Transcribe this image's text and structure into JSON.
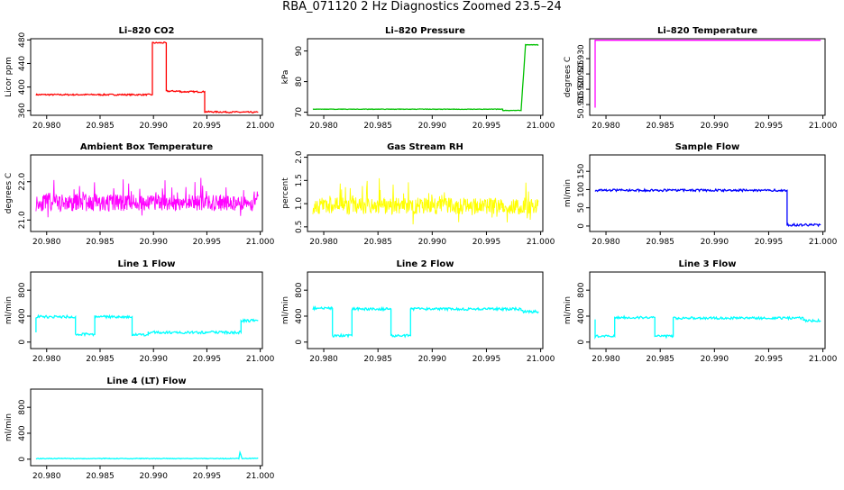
{
  "title": "RBA_071120  2 Hz Diagnostics Zoomed 23.5–24",
  "colors": {
    "red": "#ff0000",
    "green": "#00c000",
    "magenta": "#ff00ff",
    "yellow": "#ffff00",
    "blue": "#0000ff",
    "cyan": "#00ffff"
  },
  "chart_data": [
    {
      "type": "line",
      "title": "Li–820 CO2",
      "ylabel": "Licor ppm",
      "xlim": [
        20.9785,
        21.0002
      ],
      "ylim": [
        352,
        482
      ],
      "xticks": [
        20.98,
        20.985,
        20.99,
        20.995,
        21.0
      ],
      "xtick_labels": [
        "20.980",
        "20.985",
        "20.990",
        "20.995",
        "21.000"
      ],
      "yticks": [
        360,
        400,
        440,
        480
      ],
      "ytick_labels": [
        "360",
        "400",
        "440",
        "480"
      ],
      "color": "red",
      "noise": 1.2,
      "series": [
        {
          "x": [
            20.979,
            20.9899,
            20.9899,
            20.9912,
            20.9912,
            20.9925,
            20.9925,
            20.9948,
            20.9948,
            20.9998
          ],
          "y": [
            387,
            387,
            475,
            475,
            393,
            393,
            392,
            392,
            358,
            357
          ]
        }
      ]
    },
    {
      "type": "line",
      "title": "Li–820 Pressure",
      "ylabel": "kPa",
      "xlim": [
        20.9785,
        21.0002
      ],
      "ylim": [
        69,
        94
      ],
      "xticks": [
        20.98,
        20.985,
        20.99,
        20.995,
        21.0
      ],
      "xtick_labels": [
        "20.980",
        "20.985",
        "20.990",
        "20.995",
        "21.000"
      ],
      "yticks": [
        70,
        80,
        90
      ],
      "ytick_labels": [
        "70",
        "80",
        "90"
      ],
      "color": "green",
      "noise": 0.08,
      "series": [
        {
          "x": [
            20.979,
            20.9965,
            20.9965,
            20.9982,
            20.9986,
            20.9998
          ],
          "y": [
            71.0,
            71.0,
            70.6,
            70.6,
            92.0,
            92.0
          ]
        }
      ]
    },
    {
      "type": "line",
      "title": "Li–820 Temperature",
      "ylabel": "degrees C",
      "xlim": [
        20.9785,
        21.0002
      ],
      "ylim": [
        50.9115,
        50.9365
      ],
      "xticks": [
        20.98,
        20.985,
        20.99,
        20.995,
        21.0
      ],
      "xtick_labels": [
        "20.980",
        "20.985",
        "20.990",
        "20.995",
        "21.000"
      ],
      "yticks": [
        50.915,
        50.92,
        50.925,
        50.93
      ],
      "ytick_labels": [
        "50.915",
        "50.920",
        "50.925",
        "50.930"
      ],
      "color": "magenta",
      "noise": 0,
      "series": [
        {
          "x": [
            20.979,
            20.979,
            20.9791,
            20.9998
          ],
          "y": [
            50.914,
            50.936,
            50.936,
            50.936
          ]
        }
      ]
    },
    {
      "type": "line",
      "title": "Ambient Box Temperature",
      "ylabel": "degrees C",
      "xlim": [
        20.9785,
        21.0002
      ],
      "ylim": [
        20.7,
        22.7
      ],
      "xticks": [
        20.98,
        20.985,
        20.99,
        20.995,
        21.0
      ],
      "xtick_labels": [
        "20.980",
        "20.985",
        "20.990",
        "20.995",
        "21.000"
      ],
      "yticks": [
        21.0,
        22.0
      ],
      "ytick_labels": [
        "21.0",
        "22.0"
      ],
      "color": "magenta",
      "noise_band": {
        "center": 21.45,
        "spread": 0.22,
        "spike": 0.85,
        "seed": 11
      },
      "series": [
        {
          "x": [
            20.979,
            20.9998
          ],
          "y": [
            21.45,
            21.45
          ]
        }
      ]
    },
    {
      "type": "line",
      "title": "Gas Stream RH",
      "ylabel": "percent",
      "xlim": [
        20.9785,
        21.0002
      ],
      "ylim": [
        0.4,
        2.05
      ],
      "xticks": [
        20.98,
        20.985,
        20.99,
        20.995,
        21.0
      ],
      "xtick_labels": [
        "20.980",
        "20.985",
        "20.990",
        "20.995",
        "21.000"
      ],
      "yticks": [
        0.5,
        1.0,
        1.5,
        2.0
      ],
      "ytick_labels": [
        "0.5",
        "1.0",
        "1.5",
        "2.0"
      ],
      "color": "yellow",
      "noise_band": {
        "center": 0.95,
        "spread": 0.18,
        "spike": 0.85,
        "seed": 23
      },
      "series": [
        {
          "x": [
            20.979,
            20.9998
          ],
          "y": [
            0.95,
            0.95
          ]
        }
      ]
    },
    {
      "type": "line",
      "title": "Sample Flow",
      "ylabel": "ml/min",
      "xlim": [
        20.9785,
        21.0002
      ],
      "ylim": [
        -15,
        195
      ],
      "xticks": [
        20.98,
        20.985,
        20.99,
        20.995,
        21.0
      ],
      "xtick_labels": [
        "20.980",
        "20.985",
        "20.990",
        "20.995",
        "21.000"
      ],
      "yticks": [
        0,
        50,
        100,
        150
      ],
      "ytick_labels": [
        "0",
        "50",
        "100",
        "150"
      ],
      "color": "blue",
      "noise": 3,
      "series": [
        {
          "x": [
            20.979,
            20.9967,
            20.9967,
            20.9998
          ],
          "y": [
            98,
            98,
            3,
            3
          ]
        }
      ]
    },
    {
      "type": "line",
      "title": "Line 1 Flow",
      "ylabel": "ml/min",
      "xlim": [
        20.9785,
        21.0002
      ],
      "ylim": [
        -100,
        1080
      ],
      "xticks": [
        20.98,
        20.985,
        20.99,
        20.995,
        21.0
      ],
      "xtick_labels": [
        "20.980",
        "20.985",
        "20.990",
        "20.995",
        "21.000"
      ],
      "yticks": [
        0,
        400,
        800
      ],
      "ytick_labels": [
        "0",
        "400",
        "800"
      ],
      "color": "cyan",
      "noise": 20,
      "series": [
        {
          "x": [
            20.979,
            20.979,
            20.9827,
            20.9827,
            20.9845,
            20.9845,
            20.988,
            20.988,
            20.9895,
            20.9895,
            20.9982,
            20.9982,
            20.9998
          ],
          "y": [
            150,
            390,
            390,
            120,
            120,
            390,
            390,
            110,
            110,
            150,
            150,
            330,
            330
          ]
        }
      ]
    },
    {
      "type": "line",
      "title": "Line 2 Flow",
      "ylabel": "ml/min",
      "xlim": [
        20.9785,
        21.0002
      ],
      "ylim": [
        -100,
        1080
      ],
      "xticks": [
        20.98,
        20.985,
        20.99,
        20.995,
        21.0
      ],
      "xtick_labels": [
        "20.980",
        "20.985",
        "20.990",
        "20.995",
        "21.000"
      ],
      "yticks": [
        0,
        400,
        800
      ],
      "ytick_labels": [
        "0",
        "400",
        "800"
      ],
      "color": "cyan",
      "noise": 20,
      "series": [
        {
          "x": [
            20.979,
            20.9808,
            20.9808,
            20.9826,
            20.9826,
            20.9862,
            20.9862,
            20.988,
            20.988,
            20.9982,
            20.9982,
            20.9998
          ],
          "y": [
            520,
            520,
            100,
            100,
            510,
            510,
            100,
            100,
            510,
            510,
            470,
            470
          ]
        }
      ]
    },
    {
      "type": "line",
      "title": "Line 3 Flow",
      "ylabel": "ml/min",
      "xlim": [
        20.9785,
        21.0002
      ],
      "ylim": [
        -100,
        1080
      ],
      "xticks": [
        20.98,
        20.985,
        20.99,
        20.995,
        21.0
      ],
      "xtick_labels": [
        "20.980",
        "20.985",
        "20.990",
        "20.995",
        "21.000"
      ],
      "yticks": [
        0,
        400,
        800
      ],
      "ytick_labels": [
        "0",
        "400",
        "800"
      ],
      "color": "cyan",
      "noise": 18,
      "series": [
        {
          "x": [
            20.979,
            20.979,
            20.9808,
            20.9808,
            20.9845,
            20.9845,
            20.9862,
            20.9862,
            20.9982,
            20.9982,
            20.9998
          ],
          "y": [
            350,
            90,
            90,
            380,
            380,
            90,
            90,
            370,
            370,
            330,
            330
          ]
        }
      ]
    },
    {
      "type": "line",
      "title": "Line 4 (LT) Flow",
      "ylabel": "ml/min",
      "xlim": [
        20.9785,
        21.0002
      ],
      "ylim": [
        -100,
        1080
      ],
      "xticks": [
        20.98,
        20.985,
        20.99,
        20.995,
        21.0
      ],
      "xtick_labels": [
        "20.980",
        "20.985",
        "20.990",
        "20.995",
        "21.000"
      ],
      "yticks": [
        0,
        400,
        800
      ],
      "ytick_labels": [
        "0",
        "400",
        "800"
      ],
      "color": "cyan",
      "noise": 6,
      "series": [
        {
          "x": [
            20.979,
            20.998,
            20.9981,
            20.9982,
            20.9983,
            20.9998
          ],
          "y": [
            10,
            10,
            110,
            60,
            12,
            12
          ]
        }
      ]
    }
  ]
}
